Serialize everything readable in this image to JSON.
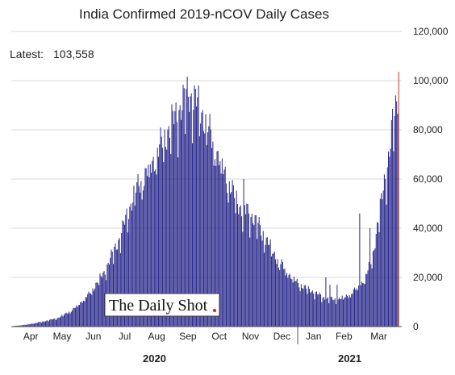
{
  "chart_data": {
    "type": "bar",
    "title": "India Confirmed 2019-nCOV Daily Cases",
    "latest_label": "Latest:",
    "latest_value": "103,558",
    "watermark": "The Daily Shot",
    "xlabel": "",
    "ylabel": "",
    "ylim": [
      0,
      120000
    ],
    "y_ticks": [
      "0",
      "20,000",
      "40,000",
      "60,000",
      "80,000",
      "100,000",
      "120,000"
    ],
    "y_tick_values": [
      0,
      20000,
      40000,
      60000,
      80000,
      100000,
      120000
    ],
    "x_start_date": "2020-03-28",
    "month_labels": [
      "Apr",
      "May",
      "Jun",
      "Jul",
      "Aug",
      "Sep",
      "Oct",
      "Nov",
      "Dec",
      "Jan",
      "Feb",
      "Mar"
    ],
    "years": [
      "2020",
      "2021"
    ],
    "grid": true,
    "bar_color": "#2b2a8c",
    "highlight_color": "#c0392b",
    "control_points": [
      [
        0,
        150
      ],
      [
        15,
        800
      ],
      [
        30,
        2000
      ],
      [
        45,
        3500
      ],
      [
        60,
        7000
      ],
      [
        75,
        13000
      ],
      [
        90,
        22000
      ],
      [
        105,
        36000
      ],
      [
        120,
        55000
      ],
      [
        135,
        65000
      ],
      [
        150,
        78000
      ],
      [
        165,
        90000
      ],
      [
        172,
        95000
      ],
      [
        178,
        93000
      ],
      [
        188,
        85000
      ],
      [
        196,
        75000
      ],
      [
        205,
        65000
      ],
      [
        215,
        55000
      ],
      [
        225,
        47000
      ],
      [
        235,
        45000
      ],
      [
        245,
        38000
      ],
      [
        255,
        30000
      ],
      [
        265,
        24000
      ],
      [
        275,
        19000
      ],
      [
        285,
        16000
      ],
      [
        295,
        14000
      ],
      [
        305,
        11500
      ],
      [
        315,
        11000
      ],
      [
        325,
        12000
      ],
      [
        335,
        15000
      ],
      [
        345,
        20000
      ],
      [
        352,
        30000
      ],
      [
        358,
        45000
      ],
      [
        363,
        60000
      ],
      [
        368,
        70000
      ],
      [
        371,
        82000
      ],
      [
        374,
        90000
      ],
      [
        376,
        96000
      ],
      [
        377,
        103558
      ]
    ],
    "spikes": [
      [
        226,
        60000
      ],
      [
        229,
        50000
      ],
      [
        244,
        35000
      ],
      [
        261,
        23000
      ],
      [
        306,
        20000
      ],
      [
        310,
        17000
      ],
      [
        317,
        17000
      ],
      [
        339,
        46000
      ],
      [
        349,
        40000
      ]
    ]
  }
}
